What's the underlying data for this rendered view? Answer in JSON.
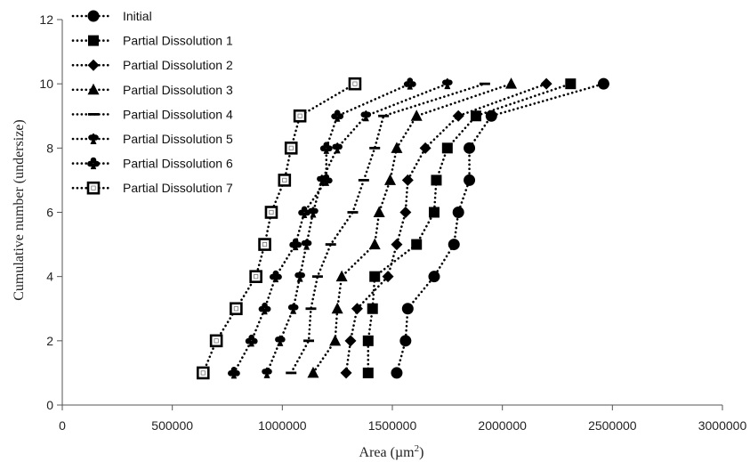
{
  "chart_data": {
    "type": "scatter",
    "title": "",
    "xlabel": "Area (µm",
    "xlabel_sup": "2",
    "xlabel_close": ")",
    "ylabel": "Cumulative number (undersize)",
    "xlim": [
      0,
      3000000
    ],
    "ylim": [
      0,
      12
    ],
    "x_ticks": [
      0,
      500000,
      1000000,
      1500000,
      2000000,
      2500000,
      3000000
    ],
    "x_tick_labels": [
      "0",
      "500000",
      "1000000",
      "1500000",
      "2000000",
      "2500000",
      "3000000"
    ],
    "y_ticks": [
      0,
      2,
      4,
      6,
      8,
      10,
      12
    ],
    "y_tick_labels": [
      "0",
      "2",
      "4",
      "6",
      "8",
      "10",
      "12"
    ],
    "grid": false,
    "legend_position": "top-left",
    "line_style": "dotted",
    "color": "#000000",
    "y": [
      1,
      2,
      3,
      4,
      5,
      6,
      7,
      8,
      9,
      10
    ],
    "series": [
      {
        "name": "Initial",
        "marker": "circle",
        "x": [
          1520000,
          1560000,
          1570000,
          1690000,
          1780000,
          1800000,
          1850000,
          1850000,
          1950000,
          2460000
        ]
      },
      {
        "name": "Partial Dissolution 1",
        "marker": "square",
        "x": [
          1390000,
          1390000,
          1410000,
          1420000,
          1610000,
          1690000,
          1700000,
          1750000,
          1880000,
          2310000
        ]
      },
      {
        "name": "Partial Dissolution 2",
        "marker": "diamond",
        "x": [
          1290000,
          1310000,
          1340000,
          1480000,
          1520000,
          1560000,
          1570000,
          1650000,
          1800000,
          2200000
        ]
      },
      {
        "name": "Partial Dissolution 3",
        "marker": "triangle",
        "x": [
          1140000,
          1240000,
          1250000,
          1270000,
          1420000,
          1440000,
          1490000,
          1520000,
          1610000,
          2040000
        ]
      },
      {
        "name": "Partial Dissolution 4",
        "marker": "dash",
        "x": [
          1040000,
          1120000,
          1130000,
          1160000,
          1220000,
          1320000,
          1370000,
          1420000,
          1460000,
          1920000
        ]
      },
      {
        "name": "Partial Dissolution 5",
        "marker": "spade",
        "x": [
          930000,
          990000,
          1050000,
          1080000,
          1110000,
          1140000,
          1180000,
          1250000,
          1380000,
          1750000
        ]
      },
      {
        "name": "Partial Dissolution 6",
        "marker": "club",
        "x": [
          780000,
          860000,
          920000,
          970000,
          1060000,
          1100000,
          1200000,
          1200000,
          1250000,
          1580000
        ]
      },
      {
        "name": "Partial Dissolution 7",
        "marker": "hollow-square",
        "x": [
          640000,
          700000,
          790000,
          880000,
          920000,
          950000,
          1010000,
          1040000,
          1080000,
          1330000
        ]
      }
    ]
  }
}
